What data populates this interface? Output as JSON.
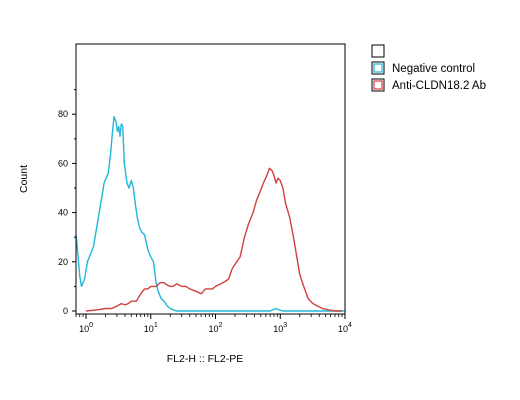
{
  "chart_data": {
    "type": "line",
    "title": "",
    "xlabel": "FL2-H :: FL2-PE",
    "ylabel": "Count",
    "x_scale": "log",
    "xlim": [
      0.7,
      10000
    ],
    "ylim": [
      0,
      100
    ],
    "x_ticks": [
      {
        "value": 1,
        "base": "10",
        "exp": "0"
      },
      {
        "value": 10,
        "base": "10",
        "exp": "1"
      },
      {
        "value": 100,
        "base": "10",
        "exp": "2"
      },
      {
        "value": 1000,
        "base": "10",
        "exp": "3"
      },
      {
        "value": 10000,
        "base": "10",
        "exp": "4"
      }
    ],
    "y_ticks": [
      0,
      20,
      40,
      60,
      80
    ],
    "legend_placement": "right",
    "legend_header": "",
    "series": [
      {
        "name": "Negative control",
        "color": "#1fb8d8",
        "x": [
          0.7,
          0.72,
          0.8,
          0.85,
          0.95,
          1.05,
          1.3,
          1.6,
          1.9,
          2.2,
          2.4,
          2.55,
          2.7,
          2.9,
          3.05,
          3.2,
          3.35,
          3.5,
          3.7,
          3.9,
          4.3,
          4.6,
          5.0,
          5.4,
          5.8,
          6.2,
          6.7,
          7.0,
          7.3,
          8.0,
          9.0,
          10.0,
          11.0,
          11.5,
          12.0,
          13.0,
          14.5,
          16.0,
          17.0,
          18.0,
          20.0,
          22.0,
          25.0,
          30.0,
          50.0,
          100.0,
          300.0,
          700.0,
          850.0,
          950.0,
          1100.0,
          2000.0,
          10000.0
        ],
        "y": [
          31,
          28,
          14,
          10,
          13,
          20,
          26,
          40,
          52,
          56,
          64,
          72,
          79,
          77,
          73,
          75,
          71,
          76,
          75,
          60,
          52,
          50,
          53,
          50,
          43,
          38,
          34,
          33,
          32,
          31,
          25,
          22,
          20,
          16,
          12,
          8,
          5,
          4,
          3,
          2,
          1,
          0.5,
          0,
          0,
          0,
          0,
          0,
          0,
          1,
          0.5,
          0,
          0,
          0
        ]
      },
      {
        "name": "Anti-CLDN18.2 Ab",
        "color": "#d0413e",
        "x": [
          1.0,
          1.5,
          2.0,
          2.5,
          3.0,
          3.5,
          4.0,
          4.5,
          5.0,
          6.0,
          7.0,
          8.0,
          9.0,
          10.0,
          12.0,
          14.0,
          16.0,
          18.0,
          20.0,
          22.0,
          25.0,
          30.0,
          35.0,
          40.0,
          50.0,
          60.0,
          70.0,
          80.0,
          90.0,
          100.0,
          120.0,
          140.0,
          160.0,
          180.0,
          200.0,
          240.0,
          280.0,
          320.0,
          380.0,
          430.0,
          480.0,
          550.0,
          620.0,
          680.0,
          750.0,
          800.0,
          860.0,
          920.0,
          1000.0,
          1100.0,
          1200.0,
          1400.0,
          1600.0,
          1800.0,
          2000.0,
          2300.0,
          2700.0,
          3200.0,
          3800.0,
          4500.0,
          5500.0,
          7000.0,
          9000.0
        ],
        "y": [
          0,
          0.5,
          1,
          1,
          2,
          3,
          2.5,
          3,
          4,
          4,
          7,
          9,
          9,
          10,
          10,
          11.5,
          11.5,
          10.5,
          10,
          10,
          11,
          10,
          10,
          9,
          8,
          7,
          9,
          9,
          9,
          10,
          11,
          12,
          13,
          17,
          19,
          22,
          30,
          35,
          40,
          45,
          48,
          52,
          55,
          58,
          57,
          55,
          52,
          54,
          53,
          50,
          44,
          38,
          30,
          22,
          15,
          10,
          5,
          3,
          2,
          1,
          0.5,
          0,
          0
        ]
      }
    ]
  }
}
